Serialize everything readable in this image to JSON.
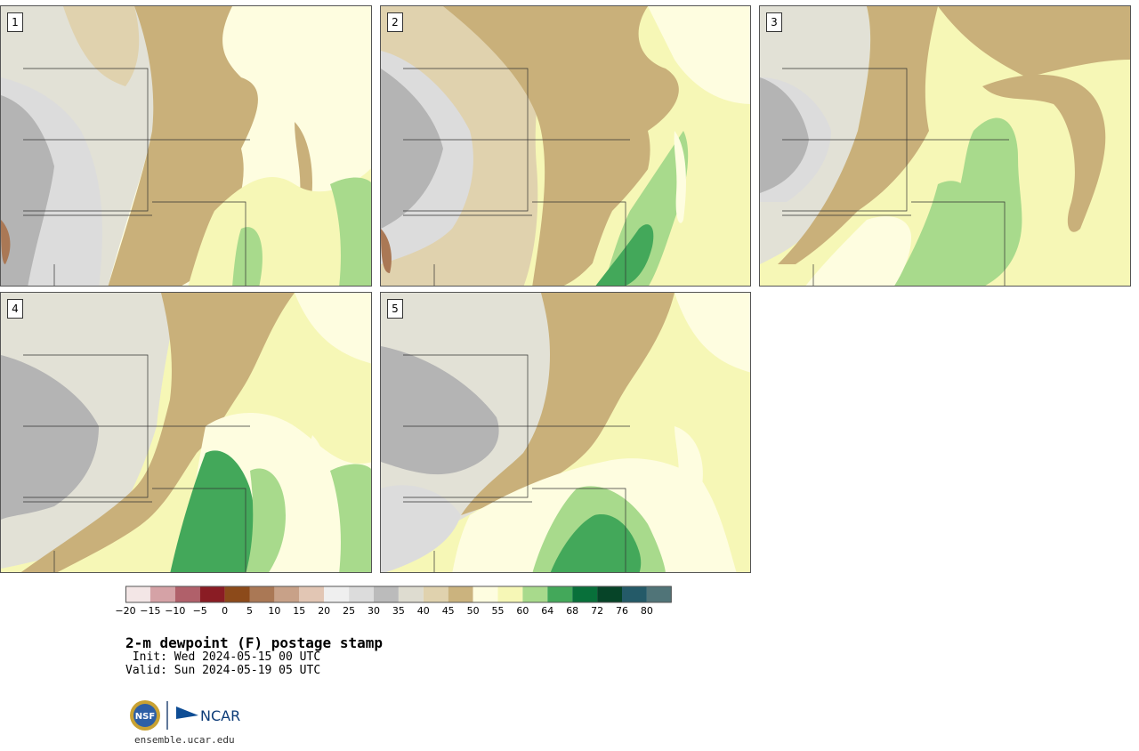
{
  "panels": [
    {
      "number": "1"
    },
    {
      "number": "2"
    },
    {
      "number": "3"
    },
    {
      "number": "4"
    },
    {
      "number": "5"
    }
  ],
  "colorbar": {
    "colors": [
      "#f3e6e6",
      "#d5a2a6",
      "#b0606a",
      "#8a1c24",
      "#8c4a1a",
      "#aa7855",
      "#c8a188",
      "#e2c6b4",
      "#efefef",
      "#dcdcdc",
      "#bbbbbb",
      "#dedcd0",
      "#e0d2ae",
      "#cbb37e",
      "#fefde0",
      "#f6f7b6",
      "#a8da8c",
      "#43a85a",
      "#08703a",
      "#064428",
      "#245a68",
      "#507478"
    ],
    "tick_labels": [
      "−20",
      "−15",
      "−10",
      "−5",
      "0",
      "5",
      "10",
      "15",
      "20",
      "25",
      "30",
      "35",
      "40",
      "45",
      "50",
      "55",
      "60",
      "64",
      "68",
      "72",
      "76",
      "80"
    ]
  },
  "title": "2-m dewpoint (F) postage stamp",
  "init": " Init: Wed 2024-05-15 00 UTC",
  "valid": "Valid: Sun 2024-05-19 05 UTC",
  "logo": {
    "left_text": "NSF",
    "right_text": "NCAR"
  },
  "website": "ensemble.ucar.edu",
  "map_colors": {
    "grey_dark": "#b4b4b4",
    "grey_light": "#dcdcdc",
    "grey_pale": "#e2e1d6",
    "tan_light": "#e0d2ae",
    "tan": "#c9b07a",
    "yellow_pale": "#fefde0",
    "yellow": "#f6f7b6",
    "green_light": "#a8da8c",
    "green": "#43a85a",
    "brown": "#aa7855"
  }
}
